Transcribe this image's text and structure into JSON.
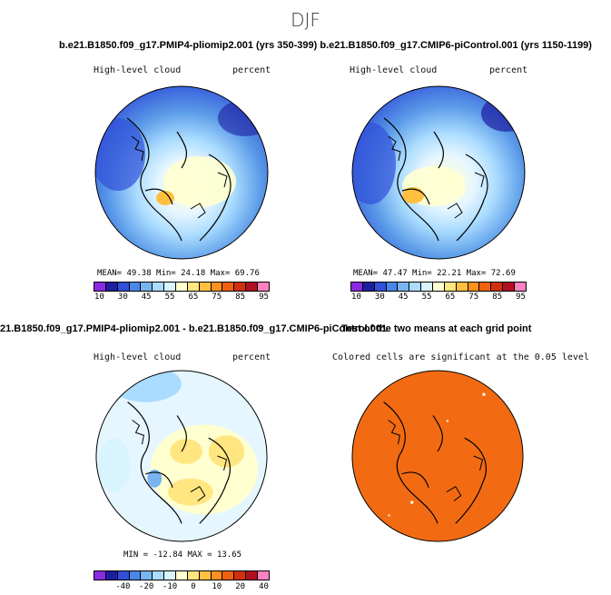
{
  "figure": {
    "season": "DJF",
    "top_title": "b.e21.B1850.f09_g17.PMIP4-pliomip2.001 (yrs 350-399) b.e21.B1850.f09_g17.CMIP6-piControl.001 (yrs 1150-1199)",
    "mid_title": "21.B1850.f09_g17.PMIP4-pliomip2.001 - b.e21.B1850.f09_g17.CMIP6-piControl.001",
    "mid_title_overlap": "Test of the two means at each grid point"
  },
  "panels": {
    "p1": {
      "variable": "High-level cloud",
      "units": "percent",
      "mean_label": "MEAN=",
      "mean": "49.38",
      "min_label": "Min=",
      "min": "24.18",
      "max_label": "Max=",
      "max": "69.76"
    },
    "p2": {
      "variable": "High-level cloud",
      "units": "percent",
      "mean_label": "MEAN=",
      "mean": "47.47",
      "min_label": "Min=",
      "min": "22.21",
      "max_label": "Max=",
      "max": "72.69"
    },
    "p3": {
      "variable": "High-level cloud",
      "units": "percent",
      "min_label": "MIN =",
      "min": "-12.84",
      "max_label": "MAX =",
      "max": "13.65"
    },
    "p4": {
      "caption": "Colored cells are significant at the 0.05 level"
    }
  },
  "colorbars": {
    "absolute": {
      "labels": [
        "10",
        "30",
        "45",
        "55",
        "65",
        "75",
        "85",
        "95"
      ],
      "colors": [
        "#8a2be2",
        "#1e1ea0",
        "#3050d8",
        "#4a86e8",
        "#78b4f0",
        "#aadcff",
        "#d8f4ff",
        "#ffffd0",
        "#ffe680",
        "#ffc040",
        "#ff9020",
        "#f06010",
        "#d03010",
        "#b01020",
        "#ff80c0"
      ]
    },
    "difference": {
      "labels": [
        "-40",
        "-20",
        "-10",
        "0",
        "10",
        "20",
        "40"
      ],
      "colors": [
        "#8a2be2",
        "#1e1ea0",
        "#3050d8",
        "#4a86e8",
        "#78b4f0",
        "#aadcff",
        "#d8f4ff",
        "#ffffd0",
        "#ffe680",
        "#ffc040",
        "#ff9020",
        "#f06010",
        "#d03010",
        "#b01020",
        "#ff80c0"
      ]
    }
  },
  "colors": {
    "significance_fill": "#f26b12",
    "land_outline": "#000000"
  }
}
